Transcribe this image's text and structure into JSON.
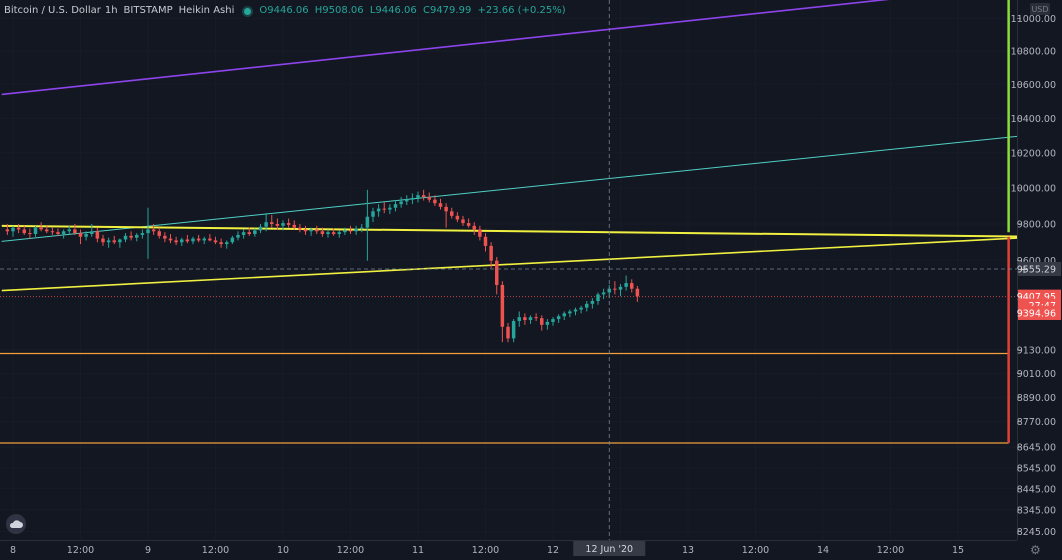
{
  "legend": {
    "symbol": "Bitcoin / U.S. Dollar",
    "interval": "1h",
    "exchange": "BITSTAMP",
    "chart_style": "Heikin Ashi",
    "open": "O9446.06",
    "high": "H9508.06",
    "low": "L9446.06",
    "close": "C9479.99",
    "change": "+23.66 (+0.25%)"
  },
  "price_axis": {
    "currency": "USD",
    "ticks": [
      "11000.00",
      "10800.00",
      "10600.00",
      "10400.00",
      "10200.00",
      "10000.00",
      "9800.00",
      "9600.00",
      "9130.00",
      "9010.00",
      "8890.00",
      "8770.00",
      "8645.00",
      "8545.00",
      "8445.00",
      "8345.00",
      "8245.00"
    ],
    "labels": [
      {
        "text": "9555.29",
        "price": 9555.29,
        "kind": "crosshair"
      },
      {
        "text": "9407.95",
        "price": 9407.95,
        "kind": "last"
      },
      {
        "text": "27:47",
        "price": 9360,
        "kind": "countdown"
      },
      {
        "text": "9394.96",
        "price": 9322,
        "kind": "last"
      }
    ]
  },
  "time_axis": {
    "labels": [
      {
        "text": "8",
        "t": 0
      },
      {
        "text": "12:00",
        "t": 12
      },
      {
        "text": "9",
        "t": 24
      },
      {
        "text": "12:00",
        "t": 36
      },
      {
        "text": "10",
        "t": 48
      },
      {
        "text": "12:00",
        "t": 60
      },
      {
        "text": "11",
        "t": 72
      },
      {
        "text": "12:00",
        "t": 84
      },
      {
        "text": "12",
        "t": 96
      },
      {
        "text": "12:00",
        "t": 108
      },
      {
        "text": "13",
        "t": 120
      },
      {
        "text": "12:00",
        "t": 132
      },
      {
        "text": "14",
        "t": 144
      },
      {
        "text": "12:00",
        "t": 156
      },
      {
        "text": "15",
        "t": 168
      }
    ],
    "crosshair_label": "12 Jun '20",
    "crosshair_t": 106
  },
  "crosshair": {
    "t": 106,
    "price": 9555.29
  },
  "colors": {
    "background": "#131722",
    "up": "#26a69a",
    "down": "#ef5350",
    "purple_line": "#8e44ec",
    "teal_line": "#4fd1c5",
    "yellow_line": "#f0f040",
    "orange_line": "#f2a03c",
    "green_bar": "#8bdc3f",
    "red_bar": "#e0403a",
    "axis_text": "#b2b5be",
    "grid": "#2a2e39"
  },
  "chart_data": {
    "type": "candlestick",
    "title": "Bitcoin / U.S. Dollar",
    "x_unit": "hours since Jun 8 00:00",
    "xlim": [
      0,
      183
    ],
    "y_scale": "log",
    "ylim": [
      8185,
      11180
    ],
    "candles": [
      {
        "t": -1,
        "o": 9770,
        "h": 9800,
        "l": 9740,
        "c": 9760
      },
      {
        "t": 0,
        "o": 9760,
        "h": 9790,
        "l": 9730,
        "c": 9780
      },
      {
        "t": 1,
        "o": 9780,
        "h": 9800,
        "l": 9750,
        "c": 9770
      },
      {
        "t": 2,
        "o": 9770,
        "h": 9790,
        "l": 9740,
        "c": 9750
      },
      {
        "t": 3,
        "o": 9750,
        "h": 9775,
        "l": 9720,
        "c": 9745
      },
      {
        "t": 4,
        "o": 9745,
        "h": 9790,
        "l": 9730,
        "c": 9780
      },
      {
        "t": 5,
        "o": 9780,
        "h": 9810,
        "l": 9760,
        "c": 9770
      },
      {
        "t": 6,
        "o": 9770,
        "h": 9790,
        "l": 9750,
        "c": 9760
      },
      {
        "t": 7,
        "o": 9760,
        "h": 9780,
        "l": 9740,
        "c": 9755
      },
      {
        "t": 8,
        "o": 9755,
        "h": 9775,
        "l": 9735,
        "c": 9745
      },
      {
        "t": 9,
        "o": 9745,
        "h": 9770,
        "l": 9720,
        "c": 9760
      },
      {
        "t": 10,
        "o": 9760,
        "h": 9790,
        "l": 9745,
        "c": 9770
      },
      {
        "t": 11,
        "o": 9770,
        "h": 9800,
        "l": 9740,
        "c": 9750
      },
      {
        "t": 12,
        "o": 9750,
        "h": 9770,
        "l": 9690,
        "c": 9730
      },
      {
        "t": 13,
        "o": 9730,
        "h": 9760,
        "l": 9710,
        "c": 9745
      },
      {
        "t": 14,
        "o": 9745,
        "h": 9800,
        "l": 9730,
        "c": 9760
      },
      {
        "t": 15,
        "o": 9760,
        "h": 9780,
        "l": 9700,
        "c": 9720
      },
      {
        "t": 16,
        "o": 9720,
        "h": 9740,
        "l": 9680,
        "c": 9700
      },
      {
        "t": 17,
        "o": 9700,
        "h": 9725,
        "l": 9670,
        "c": 9710
      },
      {
        "t": 18,
        "o": 9710,
        "h": 9735,
        "l": 9690,
        "c": 9700
      },
      {
        "t": 19,
        "o": 9700,
        "h": 9720,
        "l": 9670,
        "c": 9715
      },
      {
        "t": 20,
        "o": 9715,
        "h": 9750,
        "l": 9700,
        "c": 9735
      },
      {
        "t": 21,
        "o": 9735,
        "h": 9760,
        "l": 9710,
        "c": 9725
      },
      {
        "t": 22,
        "o": 9725,
        "h": 9750,
        "l": 9705,
        "c": 9740
      },
      {
        "t": 23,
        "o": 9740,
        "h": 9770,
        "l": 9720,
        "c": 9750
      },
      {
        "t": 24,
        "o": 9750,
        "h": 9890,
        "l": 9610,
        "c": 9770
      },
      {
        "t": 25,
        "o": 9770,
        "h": 9800,
        "l": 9740,
        "c": 9760
      },
      {
        "t": 26,
        "o": 9760,
        "h": 9780,
        "l": 9720,
        "c": 9735
      },
      {
        "t": 27,
        "o": 9735,
        "h": 9755,
        "l": 9700,
        "c": 9720
      },
      {
        "t": 28,
        "o": 9720,
        "h": 9745,
        "l": 9695,
        "c": 9710
      },
      {
        "t": 29,
        "o": 9710,
        "h": 9730,
        "l": 9685,
        "c": 9700
      },
      {
        "t": 30,
        "o": 9700,
        "h": 9725,
        "l": 9680,
        "c": 9715
      },
      {
        "t": 31,
        "o": 9715,
        "h": 9740,
        "l": 9695,
        "c": 9705
      },
      {
        "t": 32,
        "o": 9705,
        "h": 9730,
        "l": 9690,
        "c": 9720
      },
      {
        "t": 33,
        "o": 9720,
        "h": 9740,
        "l": 9700,
        "c": 9710
      },
      {
        "t": 34,
        "o": 9710,
        "h": 9730,
        "l": 9690,
        "c": 9720
      },
      {
        "t": 35,
        "o": 9720,
        "h": 9745,
        "l": 9705,
        "c": 9710
      },
      {
        "t": 36,
        "o": 9710,
        "h": 9730,
        "l": 9690,
        "c": 9700
      },
      {
        "t": 37,
        "o": 9700,
        "h": 9720,
        "l": 9670,
        "c": 9690
      },
      {
        "t": 38,
        "o": 9690,
        "h": 9710,
        "l": 9665,
        "c": 9700
      },
      {
        "t": 39,
        "o": 9700,
        "h": 9735,
        "l": 9690,
        "c": 9725
      },
      {
        "t": 40,
        "o": 9725,
        "h": 9760,
        "l": 9710,
        "c": 9740
      },
      {
        "t": 41,
        "o": 9740,
        "h": 9770,
        "l": 9720,
        "c": 9755
      },
      {
        "t": 42,
        "o": 9755,
        "h": 9780,
        "l": 9735,
        "c": 9745
      },
      {
        "t": 43,
        "o": 9745,
        "h": 9775,
        "l": 9730,
        "c": 9765
      },
      {
        "t": 44,
        "o": 9765,
        "h": 9800,
        "l": 9750,
        "c": 9785
      },
      {
        "t": 45,
        "o": 9785,
        "h": 9860,
        "l": 9760,
        "c": 9810
      },
      {
        "t": 46,
        "o": 9810,
        "h": 9850,
        "l": 9780,
        "c": 9800
      },
      {
        "t": 47,
        "o": 9800,
        "h": 9830,
        "l": 9770,
        "c": 9790
      },
      {
        "t": 48,
        "o": 9790,
        "h": 9820,
        "l": 9765,
        "c": 9805
      },
      {
        "t": 49,
        "o": 9805,
        "h": 9830,
        "l": 9780,
        "c": 9795
      },
      {
        "t": 50,
        "o": 9795,
        "h": 9820,
        "l": 9770,
        "c": 9780
      },
      {
        "t": 51,
        "o": 9780,
        "h": 9800,
        "l": 9755,
        "c": 9770
      },
      {
        "t": 52,
        "o": 9770,
        "h": 9790,
        "l": 9740,
        "c": 9760
      },
      {
        "t": 53,
        "o": 9760,
        "h": 9780,
        "l": 9735,
        "c": 9770
      },
      {
        "t": 54,
        "o": 9770,
        "h": 9790,
        "l": 9745,
        "c": 9760
      },
      {
        "t": 55,
        "o": 9760,
        "h": 9780,
        "l": 9730,
        "c": 9745
      },
      {
        "t": 56,
        "o": 9745,
        "h": 9770,
        "l": 9725,
        "c": 9755
      },
      {
        "t": 57,
        "o": 9755,
        "h": 9775,
        "l": 9735,
        "c": 9745
      },
      {
        "t": 58,
        "o": 9745,
        "h": 9765,
        "l": 9725,
        "c": 9755
      },
      {
        "t": 59,
        "o": 9755,
        "h": 9780,
        "l": 9740,
        "c": 9765
      },
      {
        "t": 60,
        "o": 9765,
        "h": 9790,
        "l": 9745,
        "c": 9760
      },
      {
        "t": 61,
        "o": 9760,
        "h": 9790,
        "l": 9740,
        "c": 9775
      },
      {
        "t": 62,
        "o": 9775,
        "h": 9800,
        "l": 9755,
        "c": 9780
      },
      {
        "t": 63,
        "o": 9780,
        "h": 9990,
        "l": 9600,
        "c": 9840
      },
      {
        "t": 64,
        "o": 9840,
        "h": 9890,
        "l": 9810,
        "c": 9870
      },
      {
        "t": 65,
        "o": 9870,
        "h": 9910,
        "l": 9840,
        "c": 9885
      },
      {
        "t": 66,
        "o": 9885,
        "h": 9920,
        "l": 9860,
        "c": 9880
      },
      {
        "t": 67,
        "o": 9880,
        "h": 9910,
        "l": 9855,
        "c": 9890
      },
      {
        "t": 68,
        "o": 9890,
        "h": 9930,
        "l": 9870,
        "c": 9910
      },
      {
        "t": 69,
        "o": 9910,
        "h": 9950,
        "l": 9890,
        "c": 9925
      },
      {
        "t": 70,
        "o": 9925,
        "h": 9960,
        "l": 9905,
        "c": 9935
      },
      {
        "t": 71,
        "o": 9935,
        "h": 9970,
        "l": 9910,
        "c": 9945
      },
      {
        "t": 72,
        "o": 9945,
        "h": 9980,
        "l": 9920,
        "c": 9960
      },
      {
        "t": 73,
        "o": 9960,
        "h": 9990,
        "l": 9930,
        "c": 9950
      },
      {
        "t": 74,
        "o": 9950,
        "h": 9975,
        "l": 9920,
        "c": 9935
      },
      {
        "t": 75,
        "o": 9935,
        "h": 9960,
        "l": 9900,
        "c": 9915
      },
      {
        "t": 76,
        "o": 9915,
        "h": 9940,
        "l": 9880,
        "c": 9895
      },
      {
        "t": 77,
        "o": 9895,
        "h": 9915,
        "l": 9780,
        "c": 9870
      },
      {
        "t": 78,
        "o": 9870,
        "h": 9890,
        "l": 9830,
        "c": 9845
      },
      {
        "t": 79,
        "o": 9845,
        "h": 9865,
        "l": 9810,
        "c": 9825
      },
      {
        "t": 80,
        "o": 9825,
        "h": 9845,
        "l": 9790,
        "c": 9805
      },
      {
        "t": 81,
        "o": 9805,
        "h": 9830,
        "l": 9780,
        "c": 9790
      },
      {
        "t": 82,
        "o": 9790,
        "h": 9810,
        "l": 9740,
        "c": 9770
      },
      {
        "t": 83,
        "o": 9770,
        "h": 9790,
        "l": 9710,
        "c": 9730
      },
      {
        "t": 84,
        "o": 9730,
        "h": 9750,
        "l": 9650,
        "c": 9680
      },
      {
        "t": 85,
        "o": 9680,
        "h": 9700,
        "l": 9560,
        "c": 9600
      },
      {
        "t": 86,
        "o": 9600,
        "h": 9620,
        "l": 9420,
        "c": 9470
      },
      {
        "t": 87,
        "o": 9470,
        "h": 9490,
        "l": 9170,
        "c": 9250
      },
      {
        "t": 88,
        "o": 9250,
        "h": 9270,
        "l": 9170,
        "c": 9190
      },
      {
        "t": 89,
        "o": 9190,
        "h": 9290,
        "l": 9170,
        "c": 9280
      },
      {
        "t": 90,
        "o": 9280,
        "h": 9330,
        "l": 9250,
        "c": 9300
      },
      {
        "t": 91,
        "o": 9300,
        "h": 9320,
        "l": 9260,
        "c": 9285
      },
      {
        "t": 92,
        "o": 9285,
        "h": 9310,
        "l": 9265,
        "c": 9300
      },
      {
        "t": 93,
        "o": 9300,
        "h": 9320,
        "l": 9280,
        "c": 9295
      },
      {
        "t": 94,
        "o": 9295,
        "h": 9310,
        "l": 9230,
        "c": 9260
      },
      {
        "t": 95,
        "o": 9260,
        "h": 9290,
        "l": 9235,
        "c": 9275
      },
      {
        "t": 96,
        "o": 9275,
        "h": 9300,
        "l": 9255,
        "c": 9290
      },
      {
        "t": 97,
        "o": 9290,
        "h": 9315,
        "l": 9270,
        "c": 9305
      },
      {
        "t": 98,
        "o": 9305,
        "h": 9330,
        "l": 9285,
        "c": 9320
      },
      {
        "t": 99,
        "o": 9320,
        "h": 9340,
        "l": 9300,
        "c": 9330
      },
      {
        "t": 100,
        "o": 9330,
        "h": 9350,
        "l": 9310,
        "c": 9340
      },
      {
        "t": 101,
        "o": 9340,
        "h": 9360,
        "l": 9320,
        "c": 9350
      },
      {
        "t": 102,
        "o": 9350,
        "h": 9385,
        "l": 9330,
        "c": 9370
      },
      {
        "t": 103,
        "o": 9370,
        "h": 9400,
        "l": 9345,
        "c": 9385
      },
      {
        "t": 104,
        "o": 9385,
        "h": 9430,
        "l": 9365,
        "c": 9420
      },
      {
        "t": 105,
        "o": 9420,
        "h": 9450,
        "l": 9395,
        "c": 9430
      },
      {
        "t": 106,
        "o": 9430,
        "h": 9470,
        "l": 9400,
        "c": 9450
      },
      {
        "t": 107,
        "o": 9450,
        "h": 9490,
        "l": 9420,
        "c": 9445
      },
      {
        "t": 108,
        "o": 9445,
        "h": 9475,
        "l": 9410,
        "c": 9460
      },
      {
        "t": 109,
        "o": 9460,
        "h": 9520,
        "l": 9440,
        "c": 9480
      },
      {
        "t": 110,
        "o": 9480,
        "h": 9500,
        "l": 9430,
        "c": 9450
      },
      {
        "t": 111,
        "o": 9450,
        "h": 9465,
        "l": 9380,
        "c": 9410
      }
    ],
    "trendlines": [
      {
        "name": "purple",
        "from": [
          -2,
          10540
        ],
        "to": [
          177,
          11200
        ]
      },
      {
        "name": "teal",
        "from": [
          -2,
          9705
        ],
        "to": [
          183,
          10310
        ]
      },
      {
        "name": "yellow-upper",
        "from": [
          -2,
          9790
        ],
        "to": [
          183,
          9730
        ]
      },
      {
        "name": "yellow-lower",
        "from": [
          -2,
          9440
        ],
        "to": [
          183,
          9730
        ]
      }
    ],
    "hlines": [
      {
        "name": "orange",
        "price": 9112
      },
      {
        "name": "orange",
        "price": 8665
      },
      {
        "name": "red-dotted",
        "price": 9407.95
      }
    ],
    "vsegments": [
      {
        "name": "green",
        "t": 177,
        "from": 9755,
        "to": 11180
      },
      {
        "name": "red",
        "t": 177,
        "from": 8665,
        "to": 9730
      }
    ]
  }
}
